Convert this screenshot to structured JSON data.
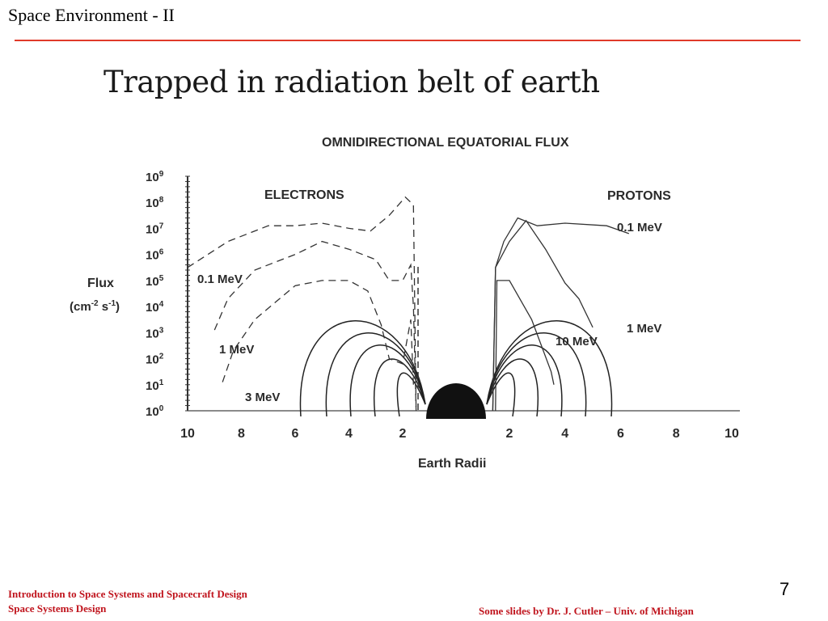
{
  "slide": {
    "title": "Space Environment - II",
    "page_number": "7",
    "footer_left_line1": "Introduction to Space Systems and Spacecraft Design",
    "footer_left_line2": "Space Systems Design",
    "footer_right": "Some slides by Dr. J. Cutler – Univ. of Michigan",
    "rule_color": "#e03a2a",
    "footer_color": "#c0141d"
  },
  "figure": {
    "title": "Trapped in radiation belt of earth"
  },
  "chart_data": {
    "type": "line",
    "title": "OMNIDIRECTIONAL EQUATORIAL FLUX",
    "xlabel": "Earth Radii",
    "ylabel_line1": "Flux",
    "ylabel_line2_parts": [
      "(cm",
      "-2",
      " s",
      "-1",
      ")"
    ],
    "y_scale": "log",
    "y_tick_exponents": [
      0,
      1,
      2,
      3,
      4,
      5,
      6,
      7,
      8,
      9
    ],
    "y_tick_base": "10",
    "ylim_exponent": [
      0,
      9
    ],
    "x_tick_labels_left": [
      "10",
      "8",
      "6",
      "4",
      "2"
    ],
    "x_tick_labels_right": [
      "2",
      "4",
      "6",
      "8",
      "10"
    ],
    "x_ticks_left_values": [
      10,
      8,
      6,
      4,
      2
    ],
    "x_ticks_right_values": [
      2,
      4,
      6,
      8,
      10
    ],
    "grid": false,
    "groups": [
      {
        "label": "ELECTRONS",
        "side": "left",
        "line_style": "dashed",
        "series": [
          {
            "name": "0.1 MeV",
            "points": [
              [
                10,
                5.5
              ],
              [
                8.5,
                6.5
              ],
              [
                7,
                7.1
              ],
              [
                6,
                7.1
              ],
              [
                5,
                7.2
              ],
              [
                4,
                7.0
              ],
              [
                3.2,
                6.9
              ],
              [
                2.5,
                7.5
              ],
              [
                1.9,
                8.2
              ],
              [
                1.6,
                7.9
              ],
              [
                1.5,
                0
              ]
            ]
          },
          {
            "name": "1 MeV",
            "points": [
              [
                9,
                3.1
              ],
              [
                8.5,
                4.3
              ],
              [
                7.5,
                5.4
              ],
              [
                6,
                6.0
              ],
              [
                5,
                6.5
              ],
              [
                4,
                6.2
              ],
              [
                3,
                5.8
              ],
              [
                2.5,
                5.0
              ],
              [
                2,
                5.0
              ],
              [
                1.7,
                5.6
              ],
              [
                1.6,
                4.0
              ],
              [
                1.5,
                0
              ]
            ]
          },
          {
            "name": "3 MeV",
            "points": [
              [
                8.7,
                1.1
              ],
              [
                8.3,
                2.3
              ],
              [
                7.5,
                3.5
              ],
              [
                6,
                4.8
              ],
              [
                5,
                5.0
              ],
              [
                4,
                5.0
              ],
              [
                3.3,
                4.6
              ],
              [
                2.8,
                3.3
              ],
              [
                2.5,
                2.0
              ],
              [
                2.0,
                1.8
              ],
              [
                1.7,
                3.5
              ],
              [
                1.6,
                1.0
              ]
            ]
          }
        ]
      },
      {
        "label": "PROTONS",
        "side": "right",
        "line_style": "solid",
        "series": [
          {
            "name": "0.1 MeV",
            "points": [
              [
                1.4,
                0
              ],
              [
                1.5,
                5.5
              ],
              [
                1.8,
                6.5
              ],
              [
                2.3,
                7.4
              ],
              [
                3,
                7.1
              ],
              [
                4,
                7.2
              ],
              [
                5.5,
                7.1
              ],
              [
                6.3,
                6.8
              ]
            ]
          },
          {
            "name": "1 MeV",
            "points": [
              [
                1.4,
                0
              ],
              [
                1.5,
                5.5
              ],
              [
                2,
                6.5
              ],
              [
                2.6,
                7.3
              ],
              [
                3.3,
                6.2
              ],
              [
                4,
                4.9
              ],
              [
                4.5,
                4.3
              ],
              [
                5,
                3.2
              ]
            ]
          },
          {
            "name": "10 MeV",
            "points": [
              [
                1.5,
                0
              ],
              [
                1.55,
                5.0
              ],
              [
                2,
                5.0
              ],
              [
                2.8,
                3.5
              ],
              [
                3.5,
                1.5
              ],
              [
                3.6,
                1.0
              ]
            ]
          }
        ]
      }
    ]
  }
}
